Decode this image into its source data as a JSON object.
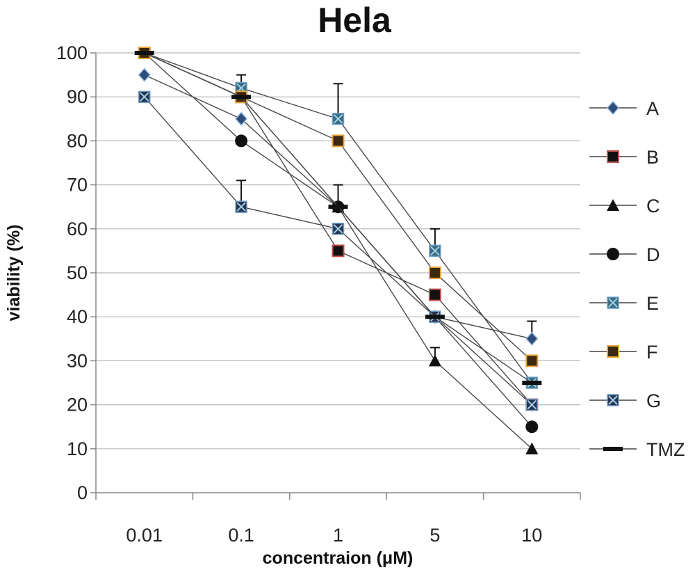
{
  "chart_data": {
    "type": "line",
    "title": "Hela",
    "xlabel": "concentraion (μM)",
    "ylabel": "viability (%)",
    "categories": [
      "0.01",
      "0.1",
      "1",
      "5",
      "10"
    ],
    "ylim": [
      0,
      100
    ],
    "yticks": [
      0,
      10,
      20,
      30,
      40,
      50,
      60,
      70,
      80,
      90,
      100
    ],
    "grid": true,
    "legend_position": "right",
    "series": [
      {
        "name": "A",
        "marker": "diamond",
        "color": "#2e4d7a",
        "values": [
          95,
          85,
          65,
          40,
          35
        ],
        "error": [
          0,
          0,
          0,
          0,
          4
        ]
      },
      {
        "name": "B",
        "marker": "square",
        "color": "#111111",
        "edge": "#c0504d",
        "values": [
          100,
          90,
          55,
          45,
          20
        ],
        "error": [
          0,
          0,
          0,
          0,
          0
        ]
      },
      {
        "name": "C",
        "marker": "triangle",
        "color": "#111111",
        "values": [
          100,
          90,
          65,
          30,
          10
        ],
        "error": [
          0,
          0,
          0,
          3,
          0
        ]
      },
      {
        "name": "D",
        "marker": "circle",
        "color": "#111111",
        "values": [
          100,
          80,
          65,
          40,
          15
        ],
        "error": [
          0,
          0,
          0,
          0,
          0
        ]
      },
      {
        "name": "E",
        "marker": "xsquare",
        "color": "#3a6e80",
        "values": [
          100,
          92,
          85,
          55,
          25
        ],
        "error": [
          0,
          3,
          8,
          5,
          0
        ]
      },
      {
        "name": "F",
        "marker": "square",
        "color": "#3b2a10",
        "edge": "#e8a33a",
        "values": [
          100,
          90,
          80,
          50,
          30
        ],
        "error": [
          0,
          0,
          0,
          0,
          0
        ]
      },
      {
        "name": "G",
        "marker": "xsquare",
        "color": "#2a3550",
        "values": [
          90,
          65,
          60,
          40,
          20
        ],
        "error": [
          0,
          6,
          0,
          0,
          0
        ]
      },
      {
        "name": "TMZ",
        "marker": "dash",
        "color": "#111111",
        "values": [
          100,
          90,
          65,
          40,
          25
        ],
        "error": [
          0,
          0,
          5,
          0,
          0
        ]
      }
    ]
  }
}
